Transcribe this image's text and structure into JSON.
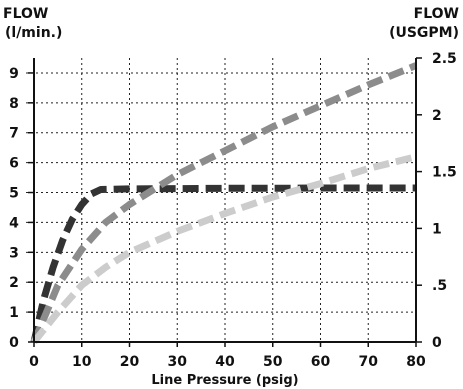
{
  "chart_data": {
    "type": "line",
    "xlabel": "Line Pressure (psig)",
    "ylabel_left": [
      "FLOW",
      "(l/min.)"
    ],
    "ylabel_right": [
      "FLOW",
      "(USGPM)"
    ],
    "x_ticks": [
      "0",
      "10",
      "20",
      "30",
      "40",
      "50",
      "60",
      "70",
      "80"
    ],
    "y_left_ticks": [
      "0",
      "1",
      "2",
      "3",
      "4",
      "5",
      "6",
      "7",
      "8",
      "9"
    ],
    "y_right_ticks": [
      "0",
      ".5",
      "1",
      "1.5",
      "2",
      "2.5"
    ],
    "xlim": [
      0,
      80
    ],
    "ylim_left": [
      0,
      9.5
    ],
    "ylim_right": [
      0,
      2.5
    ],
    "grid": true,
    "series": [
      {
        "color": "#333333",
        "style": "dashed",
        "x": [
          0,
          2,
          4,
          6,
          8,
          10,
          12,
          14,
          20,
          30,
          40,
          50,
          60,
          70,
          80
        ],
        "y": [
          0,
          1.4,
          2.5,
          3.4,
          4.1,
          4.6,
          4.95,
          5.1,
          5.12,
          5.13,
          5.14,
          5.14,
          5.15,
          5.15,
          5.15
        ]
      },
      {
        "color": "#8c8c8c",
        "style": "dashed",
        "x": [
          0,
          5,
          10,
          15,
          20,
          30,
          40,
          50,
          60,
          70,
          80
        ],
        "y": [
          0,
          1.9,
          3.1,
          4.0,
          4.6,
          5.6,
          6.4,
          7.2,
          7.9,
          8.6,
          9.25
        ]
      },
      {
        "color": "#cccccc",
        "style": "dashed",
        "x": [
          0,
          5,
          10,
          15,
          20,
          30,
          40,
          50,
          60,
          70,
          80
        ],
        "y": [
          0,
          1.0,
          1.9,
          2.5,
          3.0,
          3.7,
          4.3,
          4.85,
          5.3,
          5.8,
          6.2
        ]
      }
    ]
  }
}
